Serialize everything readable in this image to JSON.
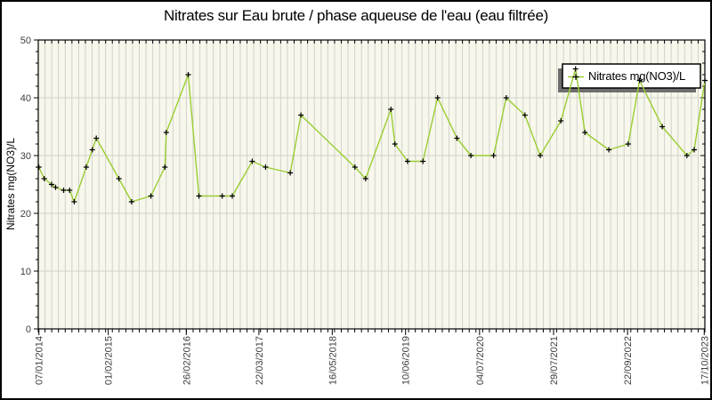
{
  "title": "Nitrates sur Eau brute / phase aqueuse de l'eau (eau filtrée)",
  "legend": {
    "label": "Nitrates mg(NO3)/L",
    "position": "top-right"
  },
  "colors": {
    "page_bg": "#ffffff",
    "frame_border": "#000000",
    "plot_bg": "#f7f7ec",
    "grid": "#d2d2cc",
    "axis": "#000000",
    "tick_label": "#3d3d3d",
    "line": "#9acd32",
    "marker": "#000000",
    "legend_bg": "#ffffff",
    "legend_border": "#000000",
    "legend_shadow": "#6e6e6e"
  },
  "chart_data": {
    "type": "line",
    "title": "Nitrates sur Eau brute / phase aqueuse de l'eau (eau filtrée)",
    "xlabel": "",
    "ylabel": "Nitrates mg(NO3)/L",
    "ylim": [
      0,
      50
    ],
    "y_ticks": [
      0,
      10,
      20,
      30,
      40,
      50
    ],
    "y_minor_step": 2,
    "x_minor_divisions": 99,
    "grid": true,
    "legend_position": "top-right",
    "x_tick_labels": [
      {
        "label": "07/01/2014",
        "f": 0.001
      },
      {
        "label": "01/02/2015",
        "f": 0.105
      },
      {
        "label": "26/02/2016",
        "f": 0.222
      },
      {
        "label": "22/03/2017",
        "f": 0.331
      },
      {
        "label": "16/05/2018",
        "f": 0.441
      },
      {
        "label": "10/06/2019",
        "f": 0.551
      },
      {
        "label": "04/07/2020",
        "f": 0.662
      },
      {
        "label": "29/07/2021",
        "f": 0.773
      },
      {
        "label": "22/09/2022",
        "f": 0.884
      },
      {
        "label": "17/10/2023",
        "f": 0.999
      }
    ],
    "series": [
      {
        "name": "Nitrates mg(NO3)/L",
        "color": "#9acd32",
        "marker": "plus",
        "marker_color": "#000000",
        "points": [
          {
            "f": 0.001,
            "v": 28
          },
          {
            "f": 0.009,
            "v": 26
          },
          {
            "f": 0.02,
            "v": 25
          },
          {
            "f": 0.026,
            "v": 24.5
          },
          {
            "f": 0.038,
            "v": 24
          },
          {
            "f": 0.047,
            "v": 24
          },
          {
            "f": 0.054,
            "v": 22
          },
          {
            "f": 0.072,
            "v": 28
          },
          {
            "f": 0.081,
            "v": 31
          },
          {
            "f": 0.087,
            "v": 33
          },
          {
            "f": 0.121,
            "v": 26
          },
          {
            "f": 0.14,
            "v": 22
          },
          {
            "f": 0.169,
            "v": 23
          },
          {
            "f": 0.19,
            "v": 28
          },
          {
            "f": 0.192,
            "v": 34
          },
          {
            "f": 0.225,
            "v": 44
          },
          {
            "f": 0.241,
            "v": 23
          },
          {
            "f": 0.276,
            "v": 23
          },
          {
            "f": 0.291,
            "v": 23
          },
          {
            "f": 0.321,
            "v": 29
          },
          {
            "f": 0.341,
            "v": 28
          },
          {
            "f": 0.378,
            "v": 27
          },
          {
            "f": 0.394,
            "v": 37
          },
          {
            "f": 0.475,
            "v": 28
          },
          {
            "f": 0.491,
            "v": 26
          },
          {
            "f": 0.529,
            "v": 38
          },
          {
            "f": 0.535,
            "v": 32
          },
          {
            "f": 0.554,
            "v": 29
          },
          {
            "f": 0.577,
            "v": 29
          },
          {
            "f": 0.599,
            "v": 40
          },
          {
            "f": 0.628,
            "v": 33
          },
          {
            "f": 0.649,
            "v": 30
          },
          {
            "f": 0.683,
            "v": 30
          },
          {
            "f": 0.702,
            "v": 40
          },
          {
            "f": 0.73,
            "v": 37
          },
          {
            "f": 0.753,
            "v": 30
          },
          {
            "f": 0.784,
            "v": 36
          },
          {
            "f": 0.806,
            "v": 45
          },
          {
            "f": 0.82,
            "v": 34
          },
          {
            "f": 0.856,
            "v": 31
          },
          {
            "f": 0.885,
            "v": 32
          },
          {
            "f": 0.902,
            "v": 43
          },
          {
            "f": 0.936,
            "v": 35
          },
          {
            "f": 0.973,
            "v": 30
          },
          {
            "f": 0.984,
            "v": 31
          },
          {
            "f": 1.0,
            "v": 43
          }
        ]
      }
    ]
  }
}
